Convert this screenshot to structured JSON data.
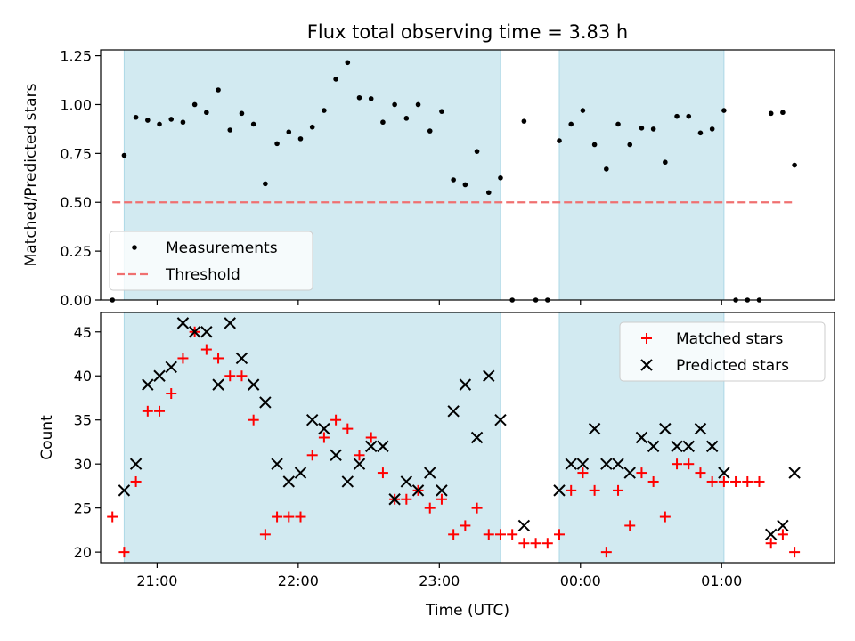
{
  "chart_data": [
    {
      "type": "scatter",
      "title": "Flux total observing time = 3.83 h",
      "xlabel": "",
      "ylabel": "Matched/Predicted stars",
      "xlim": [
        "20:36",
        "01:48"
      ],
      "ylim": [
        0,
        1.28
      ],
      "yticks": [
        0.0,
        0.25,
        0.5,
        0.75,
        1.0,
        1.25
      ],
      "ytick_labels": [
        "0.00",
        "0.25",
        "0.50",
        "0.75",
        "1.00",
        "1.25"
      ],
      "shaded_intervals": [
        [
          "20:46",
          "23:26"
        ],
        [
          "23:51",
          "01:01"
        ]
      ],
      "legend_position": "lower-left",
      "colors": {
        "measurements": "#000000",
        "threshold": "#f07070",
        "shade": "#add8e6"
      },
      "series": [
        {
          "name": "Measurements",
          "marker": "dot",
          "x": [
            "20:41",
            "20:46",
            "20:51",
            "20:56",
            "21:01",
            "21:06",
            "21:11",
            "21:16",
            "21:21",
            "21:26",
            "21:31",
            "21:36",
            "21:41",
            "21:46",
            "21:51",
            "21:56",
            "22:01",
            "22:06",
            "22:11",
            "22:16",
            "22:21",
            "22:26",
            "22:31",
            "22:36",
            "22:41",
            "22:46",
            "22:51",
            "22:56",
            "23:01",
            "23:06",
            "23:11",
            "23:16",
            "23:21",
            "23:26",
            "23:31",
            "23:36",
            "23:41",
            "23:46",
            "23:51",
            "23:56",
            "00:01",
            "00:06",
            "00:11",
            "00:16",
            "00:21",
            "00:26",
            "00:31",
            "00:36",
            "00:41",
            "00:46",
            "00:51",
            "00:56",
            "01:01",
            "01:06",
            "01:11",
            "01:16",
            "01:21",
            "01:26",
            "01:31"
          ],
          "y": [
            0.0,
            0.74,
            0.935,
            0.92,
            0.9,
            0.925,
            0.91,
            1.0,
            0.96,
            1.075,
            0.87,
            0.955,
            0.9,
            0.595,
            0.8,
            0.86,
            0.825,
            0.885,
            0.97,
            1.13,
            1.215,
            1.035,
            1.03,
            0.91,
            1.0,
            0.93,
            1.0,
            0.865,
            0.965,
            0.615,
            0.59,
            0.76,
            0.55,
            0.625,
            0.0,
            0.915,
            0.0,
            0.0,
            0.815,
            0.9,
            0.97,
            0.795,
            0.67,
            0.9,
            0.795,
            0.88,
            0.875,
            0.705,
            0.94,
            0.94,
            0.855,
            0.875,
            0.97,
            0.0,
            0.0,
            0.0,
            0.955,
            0.96,
            0.69
          ]
        },
        {
          "name": "Threshold",
          "marker": "dashed-line",
          "x": [
            "20:41",
            "01:31"
          ],
          "y": [
            0.5,
            0.5
          ]
        }
      ]
    },
    {
      "type": "scatter",
      "title": "",
      "xlabel": "Time (UTC)",
      "ylabel": "Count",
      "xlim": [
        "20:36",
        "01:48"
      ],
      "ylim": [
        18.8,
        47.2
      ],
      "yticks": [
        20,
        25,
        30,
        35,
        40,
        45
      ],
      "ytick_labels": [
        "20",
        "25",
        "30",
        "35",
        "40",
        "45"
      ],
      "xticks": [
        "21:00",
        "22:00",
        "23:00",
        "00:00",
        "01:00"
      ],
      "xtick_labels": [
        "21:00",
        "22:00",
        "23:00",
        "00:00",
        "01:00"
      ],
      "shaded_intervals": [
        [
          "20:46",
          "23:26"
        ],
        [
          "23:51",
          "01:01"
        ]
      ],
      "legend_position": "top-right",
      "colors": {
        "matched": "#ff0000",
        "predicted": "#000000",
        "shade": "#add8e6"
      },
      "series": [
        {
          "name": "Matched stars",
          "marker": "plus",
          "x": [
            "20:41",
            "20:46",
            "20:51",
            "20:56",
            "21:01",
            "21:06",
            "21:11",
            "21:16",
            "21:21",
            "21:26",
            "21:31",
            "21:36",
            "21:41",
            "21:46",
            "21:51",
            "21:56",
            "22:01",
            "22:06",
            "22:11",
            "22:16",
            "22:21",
            "22:26",
            "22:31",
            "22:36",
            "22:41",
            "22:46",
            "22:51",
            "22:56",
            "23:01",
            "23:06",
            "23:11",
            "23:16",
            "23:21",
            "23:26",
            "23:31",
            "23:36",
            "23:41",
            "23:46",
            "23:51",
            "23:56",
            "00:01",
            "00:06",
            "00:11",
            "00:16",
            "00:21",
            "00:26",
            "00:31",
            "00:36",
            "00:41",
            "00:46",
            "00:51",
            "00:56",
            "01:01",
            "01:06",
            "01:11",
            "01:16",
            "01:21",
            "01:26",
            "01:31"
          ],
          "y": [
            24,
            20,
            28,
            36,
            36,
            38,
            42,
            45,
            43,
            42,
            40,
            40,
            35,
            22,
            24,
            24,
            24,
            31,
            33,
            35,
            34,
            31,
            33,
            29,
            26,
            26,
            27,
            25,
            26,
            22,
            23,
            25,
            22,
            22,
            22,
            21,
            21,
            21,
            22,
            27,
            29,
            27,
            20,
            27,
            23,
            29,
            28,
            24,
            30,
            30,
            29,
            28,
            28,
            28,
            28,
            28,
            21,
            22,
            20
          ]
        },
        {
          "name": "Predicted stars",
          "marker": "x",
          "x": [
            "20:46",
            "20:51",
            "20:56",
            "21:01",
            "21:06",
            "21:11",
            "21:16",
            "21:21",
            "21:26",
            "21:31",
            "21:36",
            "21:41",
            "21:46",
            "21:51",
            "21:56",
            "22:01",
            "22:06",
            "22:11",
            "22:16",
            "22:21",
            "22:26",
            "22:31",
            "22:36",
            "22:41",
            "22:46",
            "22:51",
            "22:56",
            "23:01",
            "23:06",
            "23:11",
            "23:16",
            "23:21",
            "23:26",
            "23:36",
            "23:51",
            "23:56",
            "00:01",
            "00:06",
            "00:11",
            "00:16",
            "00:21",
            "00:26",
            "00:31",
            "00:36",
            "00:41",
            "00:46",
            "00:51",
            "00:56",
            "01:01",
            "01:21",
            "01:26",
            "01:31"
          ],
          "y": [
            27,
            30,
            39,
            40,
            41,
            46,
            45,
            45,
            39,
            46,
            42,
            39,
            37,
            30,
            28,
            29,
            35,
            34,
            31,
            28,
            30,
            32,
            32,
            26,
            28,
            27,
            29,
            27,
            36,
            39,
            33,
            40,
            35,
            23,
            27,
            30,
            30,
            34,
            30,
            30,
            29,
            33,
            32,
            34,
            32,
            32,
            34,
            32,
            29,
            22,
            23,
            29
          ]
        }
      ]
    }
  ]
}
